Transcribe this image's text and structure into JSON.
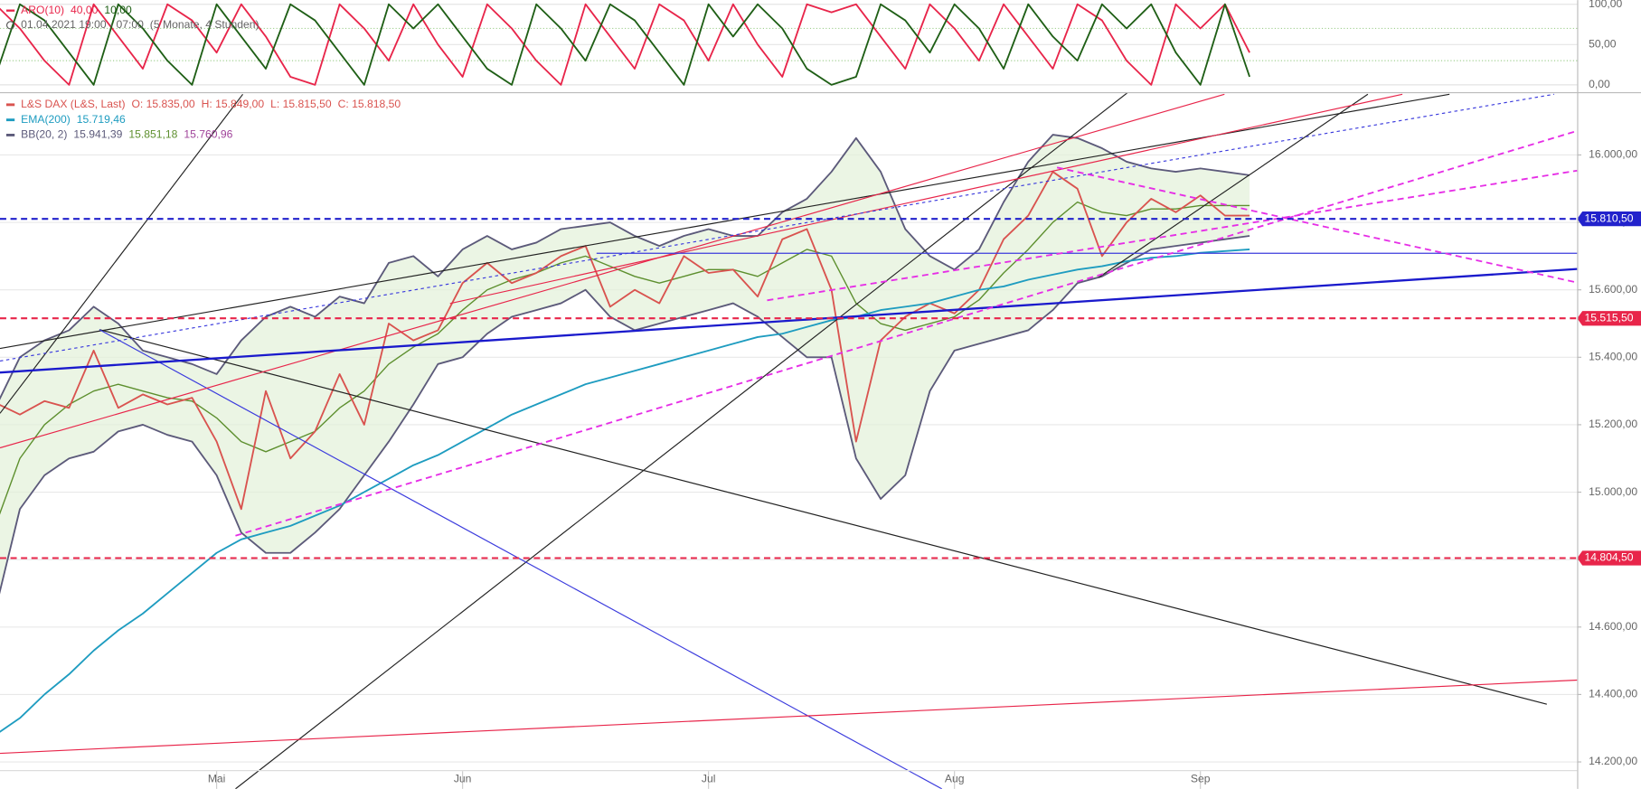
{
  "chart_data": [
    {
      "type": "line",
      "title": "ARO(10)",
      "legend_values": [
        "40,00",
        "10,00"
      ],
      "period": "01.04.2021 19:00 - 07:00",
      "range_note": "(5 Monate, 4 Stunden)",
      "ylim": [
        0,
        100
      ],
      "yticks": [
        {
          "value": 0,
          "label": "0,00"
        },
        {
          "value": 50,
          "label": "50,00"
        },
        {
          "value": 100,
          "label": "100,00"
        }
      ],
      "levels": [
        70,
        30
      ],
      "series": [
        {
          "color": "#e8254a",
          "values": [
            100,
            70,
            30,
            0,
            100,
            60,
            20,
            100,
            80,
            40,
            100,
            60,
            10,
            0,
            100,
            70,
            30,
            100,
            50,
            10,
            100,
            70,
            30,
            0,
            100,
            60,
            20,
            100,
            80,
            30,
            100,
            50,
            10,
            100,
            90,
            100,
            60,
            20,
            100,
            70,
            30,
            100,
            60,
            20,
            100,
            80,
            30,
            0,
            100,
            70,
            100,
            40,
            null,
            null,
            null,
            null,
            null,
            null,
            null,
            null,
            null,
            null,
            null,
            null,
            null
          ]
        },
        {
          "color": "#1f5f16",
          "values": [
            10,
            100,
            80,
            40,
            0,
            100,
            70,
            30,
            0,
            100,
            60,
            20,
            100,
            80,
            40,
            0,
            100,
            70,
            100,
            60,
            20,
            0,
            100,
            70,
            30,
            100,
            80,
            40,
            0,
            100,
            60,
            100,
            70,
            20,
            0,
            10,
            100,
            80,
            40,
            100,
            70,
            20,
            100,
            60,
            30,
            100,
            70,
            100,
            40,
            0,
            100,
            10,
            null,
            null,
            null,
            null,
            null,
            null,
            null,
            null,
            null,
            null,
            null,
            null,
            null
          ]
        }
      ]
    },
    {
      "type": "line",
      "categories": [
        null,
        null,
        null,
        null,
        null,
        null,
        null,
        null,
        null,
        "Mai",
        null,
        null,
        null,
        null,
        null,
        null,
        null,
        null,
        null,
        "Jun",
        null,
        null,
        null,
        null,
        null,
        null,
        null,
        null,
        null,
        "Jul",
        null,
        null,
        null,
        null,
        null,
        null,
        null,
        null,
        null,
        "Aug",
        null,
        null,
        null,
        null,
        null,
        null,
        null,
        null,
        null,
        "Sep",
        null,
        null,
        null,
        null,
        null,
        null,
        null,
        null,
        null,
        null,
        null,
        null,
        null,
        null,
        null
      ],
      "ylim": [
        14120,
        16180
      ],
      "yticks": [
        {
          "value": 14200,
          "label": "14.200,00"
        },
        {
          "value": 14400,
          "label": "14.400,00"
        },
        {
          "value": 14600,
          "label": "14.600,00"
        },
        {
          "value": 14800,
          "label": "14.800,00"
        },
        {
          "value": 15000,
          "label": "15.000,00"
        },
        {
          "value": 15200,
          "label": "15.200,00"
        },
        {
          "value": 15400,
          "label": "15.400,00"
        },
        {
          "value": 15600,
          "label": "15.600,00"
        },
        {
          "value": 15800,
          "label": "15.800,00"
        },
        {
          "value": 16000,
          "label": "16.000,00"
        }
      ],
      "grid": true,
      "hlines": [
        {
          "value": 15810.5,
          "label": "15.810,50",
          "color": "#2222cc"
        },
        {
          "value": 15515.5,
          "label": "15.515,50",
          "color": "#e8254a"
        },
        {
          "value": 14804.5,
          "label": "14.804,50",
          "color": "#e8254a"
        }
      ],
      "series": [
        {
          "name": "L&S DAX (L&S, Last)",
          "color": "#d9534f",
          "info": [
            "O: 15.835,00",
            "H: 15.849,00",
            "L: 15.815,50",
            "C: 15.818,50"
          ],
          "values": [
            15265,
            15230,
            15270,
            15250,
            15420,
            15250,
            15290,
            15260,
            15280,
            15150,
            14950,
            15300,
            15100,
            15180,
            15350,
            15200,
            15500,
            15450,
            15480,
            15620,
            15680,
            15620,
            15650,
            15700,
            15730,
            15550,
            15600,
            15560,
            15700,
            15650,
            15660,
            15580,
            15750,
            15780,
            15600,
            15150,
            15450,
            15520,
            15560,
            15530,
            15600,
            15750,
            15820,
            15950,
            15900,
            15700,
            15800,
            15870,
            15830,
            15880,
            15820,
            15820,
            null,
            null,
            null,
            null,
            null,
            null,
            null,
            null,
            null,
            null,
            null,
            null,
            null
          ]
        },
        {
          "name": "EMA(200)",
          "color": "#1e9cc0",
          "info": [
            "15.719,46"
          ],
          "values": [
            14280,
            14330,
            14400,
            14460,
            14530,
            14590,
            14640,
            14700,
            14760,
            14820,
            14860,
            14880,
            14900,
            14930,
            14960,
            15000,
            15040,
            15080,
            15110,
            15150,
            15190,
            15230,
            15260,
            15290,
            15320,
            15340,
            15360,
            15380,
            15400,
            15420,
            15440,
            15460,
            15470,
            15490,
            15510,
            15520,
            15540,
            15550,
            15560,
            15580,
            15600,
            15610,
            15630,
            15645,
            15660,
            15670,
            15685,
            15695,
            15700,
            15710,
            15715,
            15720,
            null,
            null,
            null,
            null,
            null,
            null,
            null,
            null,
            null,
            null,
            null,
            null,
            null
          ]
        },
        {
          "name": "BB(20, 2)",
          "color": "#5c5a7a",
          "info": [
            "15.941,39",
            "15.851,18",
            "15.760,96"
          ],
          "info_colors": [
            "#5c5a7a",
            "#5d8f2e",
            "#a0449a"
          ],
          "middle_color": "#5d8f2e",
          "values": [
            14900,
            15100,
            15200,
            15260,
            15300,
            15320,
            15300,
            15280,
            15270,
            15220,
            15150,
            15120,
            15150,
            15180,
            15250,
            15300,
            15380,
            15430,
            15470,
            15540,
            15600,
            15630,
            15650,
            15680,
            15700,
            15670,
            15640,
            15620,
            15640,
            15660,
            15660,
            15640,
            15680,
            15720,
            15700,
            15560,
            15500,
            15480,
            15500,
            15520,
            15570,
            15650,
            15720,
            15800,
            15860,
            15830,
            15820,
            15840,
            15840,
            15850,
            15850,
            15850,
            null,
            null,
            null,
            null,
            null,
            null,
            null,
            null,
            null,
            null,
            null,
            null,
            null
          ],
          "upper": [
            15250,
            15400,
            15450,
            15480,
            15550,
            15500,
            15420,
            15400,
            15380,
            15350,
            15450,
            15520,
            15550,
            15520,
            15580,
            15560,
            15680,
            15700,
            15640,
            15720,
            15760,
            15720,
            15740,
            15780,
            15790,
            15800,
            15760,
            15730,
            15760,
            15780,
            15760,
            15760,
            15830,
            15870,
            15950,
            16050,
            15950,
            15780,
            15700,
            15660,
            15720,
            15860,
            15980,
            16060,
            16050,
            16020,
            15980,
            15960,
            15950,
            15960,
            15950,
            15940,
            null,
            null,
            null,
            null,
            null,
            null,
            null,
            null,
            null,
            null,
            null,
            null,
            null
          ],
          "lower": [
            14650,
            14950,
            15050,
            15100,
            15120,
            15180,
            15200,
            15170,
            15150,
            15050,
            14880,
            14820,
            14820,
            14880,
            14950,
            15050,
            15150,
            15260,
            15380,
            15400,
            15470,
            15520,
            15540,
            15560,
            15600,
            15520,
            15480,
            15500,
            15520,
            15540,
            15560,
            15520,
            15460,
            15400,
            15400,
            15100,
            14980,
            15050,
            15300,
            15420,
            15440,
            15460,
            15480,
            15540,
            15620,
            15640,
            15680,
            15720,
            15730,
            15740,
            15750,
            15760,
            null,
            null,
            null,
            null,
            null,
            null,
            null,
            null,
            null,
            null,
            null,
            null,
            null
          ]
        }
      ]
    }
  ]
}
